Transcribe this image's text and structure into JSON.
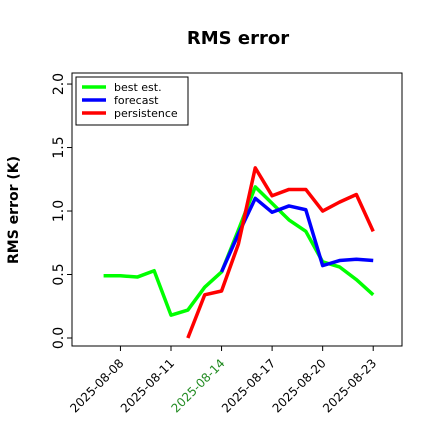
{
  "chart_data": {
    "type": "line",
    "title": "RMS error",
    "y_label": "RMS error (K)",
    "x": [
      "2025-08-07",
      "2025-08-08",
      "2025-08-09",
      "2025-08-10",
      "2025-08-11",
      "2025-08-12",
      "2025-08-13",
      "2025-08-14",
      "2025-08-15",
      "2025-08-16",
      "2025-08-17",
      "2025-08-18",
      "2025-08-19",
      "2025-08-20",
      "2025-08-21",
      "2025-08-22",
      "2025-08-23"
    ],
    "series": [
      {
        "name": "best est.",
        "color": "#00ff00",
        "values": [
          0.49,
          0.49,
          0.48,
          0.53,
          0.18,
          0.22,
          0.4,
          0.52,
          0.85,
          1.19,
          1.06,
          0.93,
          0.84,
          0.6,
          0.56,
          0.46,
          0.34
        ]
      },
      {
        "name": "forecast",
        "color": "#0000ff",
        "values": [
          null,
          null,
          null,
          null,
          null,
          null,
          null,
          0.52,
          0.82,
          1.1,
          0.99,
          1.04,
          1.01,
          0.57,
          0.61,
          0.62,
          0.61
        ]
      },
      {
        "name": "persistence",
        "color": "#ff0000",
        "values": [
          null,
          null,
          null,
          null,
          null,
          0.0,
          0.34,
          0.37,
          0.74,
          1.34,
          1.12,
          1.17,
          1.17,
          1.0,
          1.07,
          1.13,
          0.84
        ]
      }
    ],
    "xlim": [
      "2025-08-05T03:00Z",
      "2025-08-24T17:00Z"
    ],
    "xticks": [
      "2025-08-08",
      "2025-08-11",
      "2025-08-14",
      "2025-08-17",
      "2025-08-20",
      "2025-08-23"
    ],
    "xtick_colors": [
      "#000000",
      "#000000",
      "#228b22",
      "#000000",
      "#000000",
      "#000000"
    ],
    "ylim": [
      -0.063,
      2.087
    ],
    "yticks": [
      {
        "value": 0,
        "label": "0.0"
      },
      {
        "value": 0.5,
        "label": "0.5"
      },
      {
        "value": 1,
        "label": "1.0"
      },
      {
        "value": 1.5,
        "label": "1.5"
      },
      {
        "value": 2,
        "label": "2.0"
      }
    ],
    "legend": "upper left"
  }
}
